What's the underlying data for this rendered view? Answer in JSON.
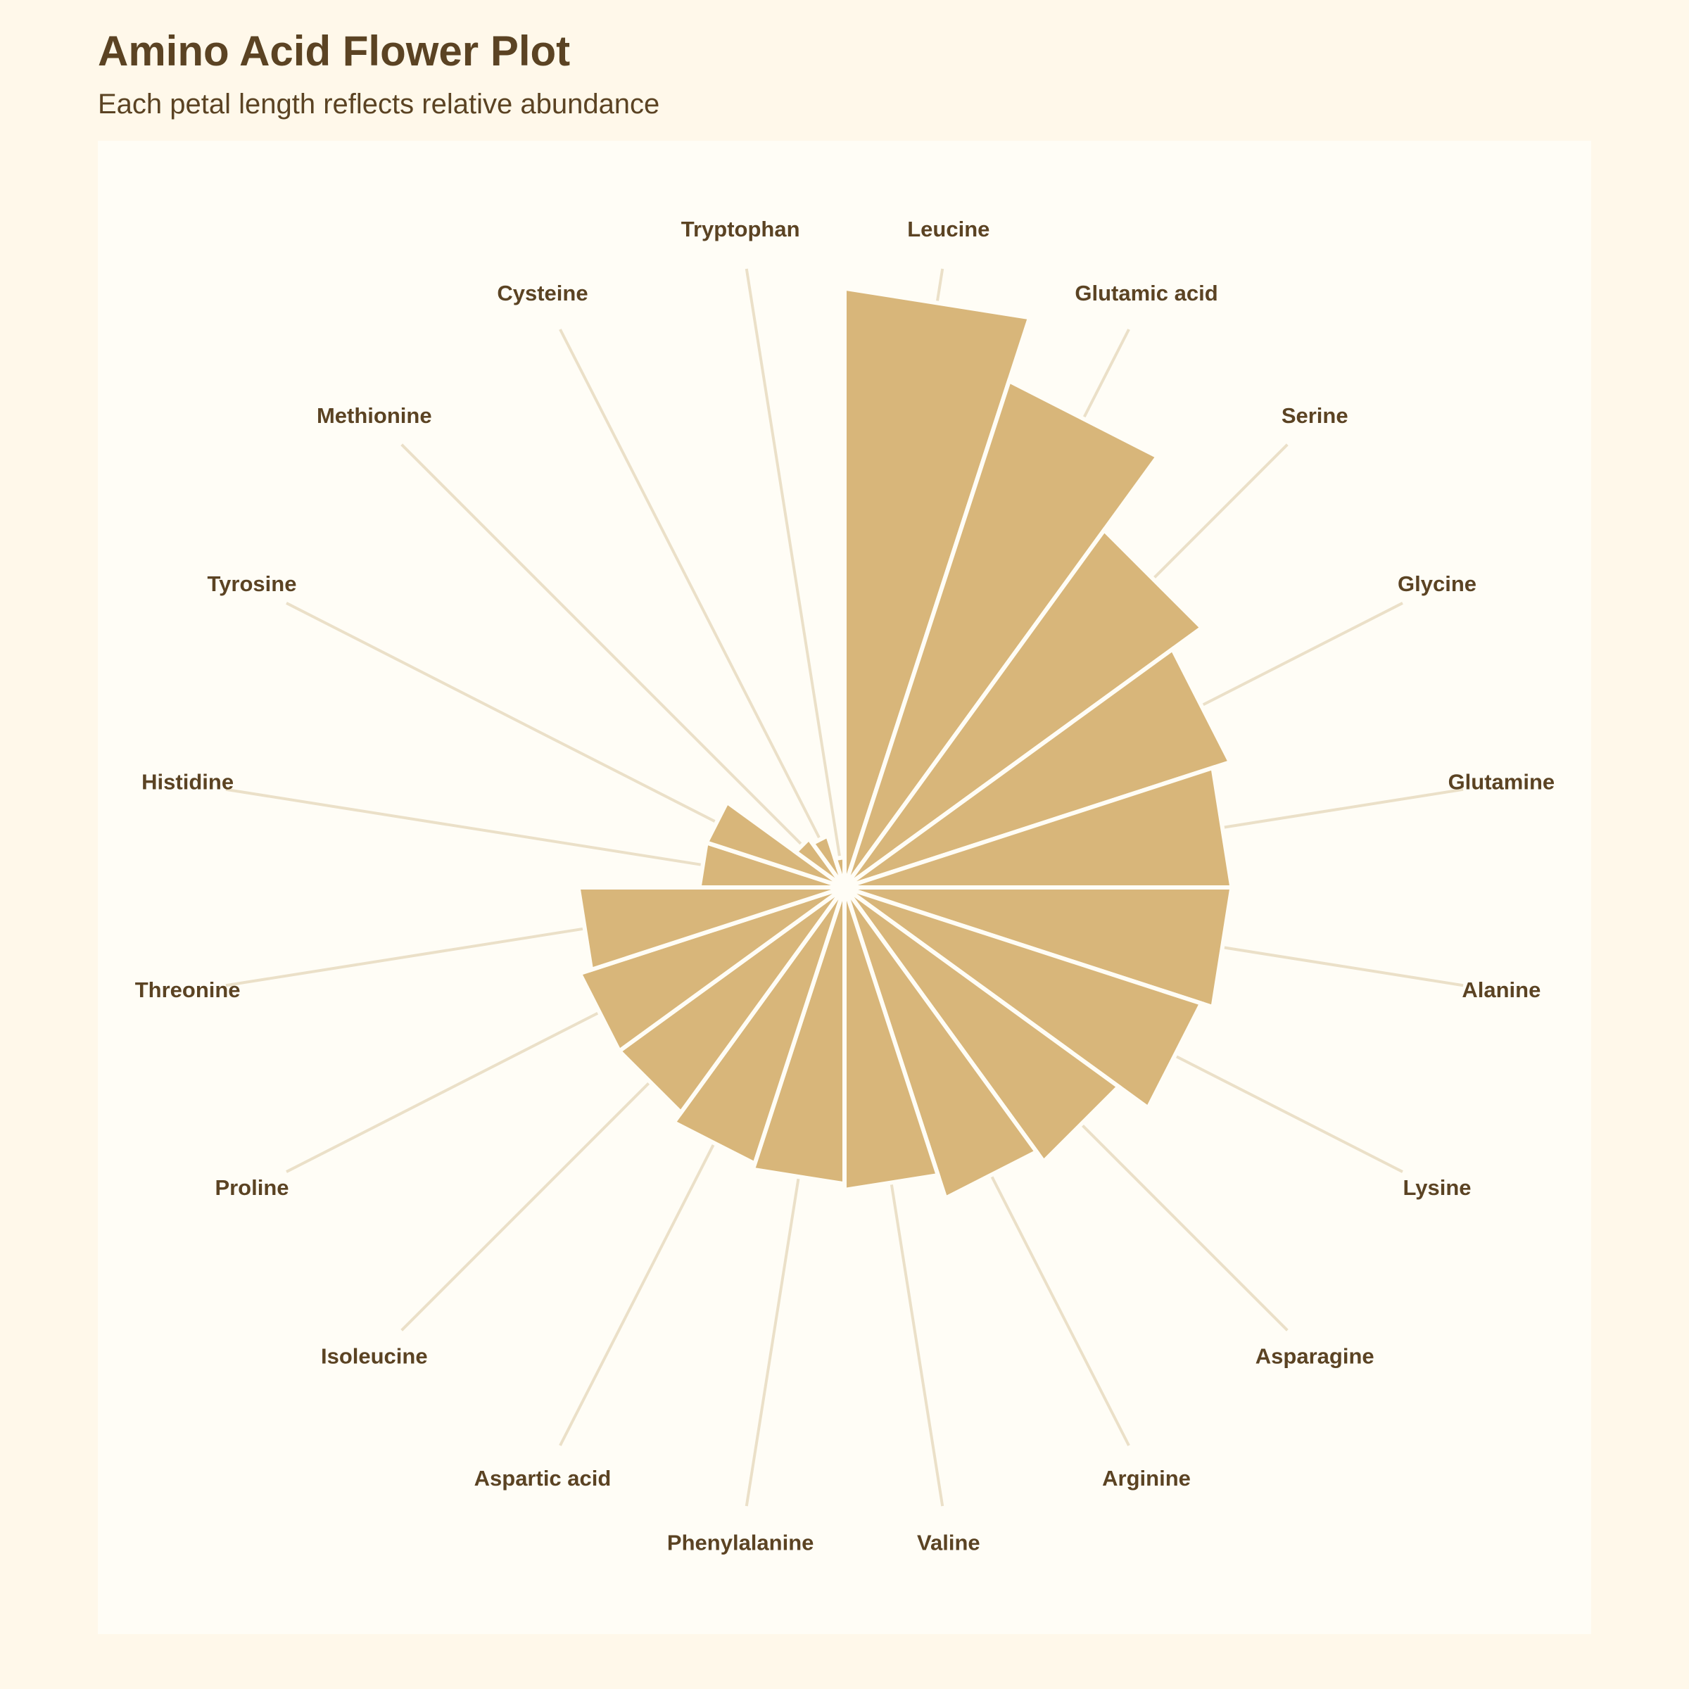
{
  "title": "Amino Acid Flower Plot",
  "subtitle": "Each petal length reflects relative abundance",
  "colors": {
    "page_background": "#fff8ea",
    "panel_background": "#fffdf6",
    "petal_fill": "#d8b67a",
    "petal_outline": "#fffdf6",
    "leader_line": "#ebe0c8",
    "text": "#5b4323"
  },
  "chart_data": {
    "type": "bar",
    "projection": "polar",
    "start_angle": "12 o'clock",
    "direction": "clockwise",
    "categories": [
      "Leucine",
      "Glutamic acid",
      "Serine",
      "Glycine",
      "Glutamine",
      "Alanine",
      "Lysine",
      "Asparagine",
      "Arginine",
      "Valine",
      "Phenylalanine",
      "Aspartic acid",
      "Isoleucine",
      "Proline",
      "Threonine",
      "Histidine",
      "Tyrosine",
      "Methionine",
      "Cysteine",
      "Tryptophan"
    ],
    "values": [
      9.9,
      8.8,
      7.3,
      6.7,
      6.4,
      6.4,
      6.2,
      5.6,
      5.4,
      5.0,
      4.9,
      4.8,
      4.6,
      4.6,
      4.4,
      2.4,
      2.4,
      1.0,
      0.9,
      0.5
    ],
    "ylim": [
      0,
      10
    ],
    "grid": false,
    "legend": "none"
  }
}
